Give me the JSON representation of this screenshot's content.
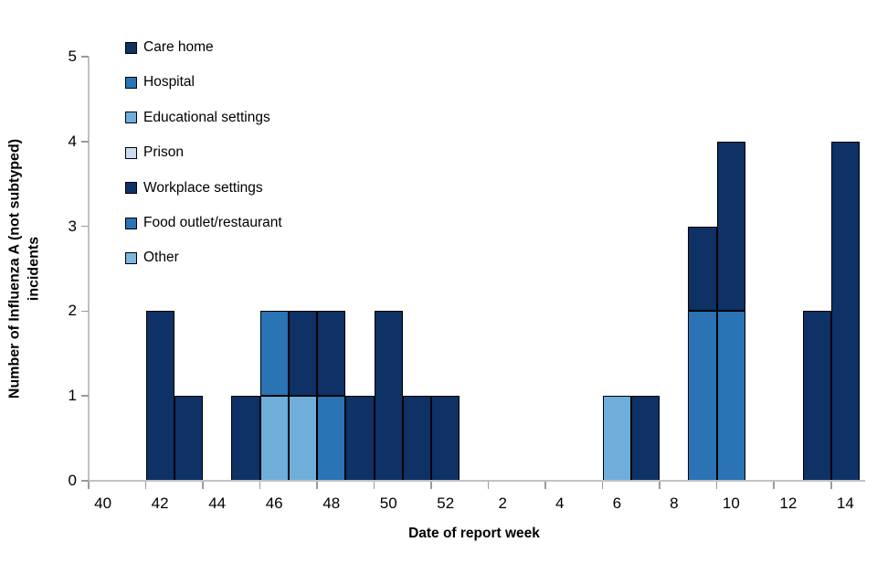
{
  "chart_data": {
    "type": "bar",
    "stacked": true,
    "title": "",
    "xlabel": "Date of report week",
    "ylabel": "Number of Influenza A (not subtyped) incidents",
    "ylabel_lines": [
      "Number of Influenza A (not subtyped)",
      "incidents"
    ],
    "ylim": [
      0,
      5
    ],
    "yticks": [
      "0",
      "1",
      "2",
      "3",
      "4",
      "5"
    ],
    "grid": false,
    "legend_position": "top-left-inside",
    "categories": [
      "40",
      "41",
      "42",
      "43",
      "44",
      "45",
      "46",
      "47",
      "48",
      "49",
      "50",
      "51",
      "52",
      "1",
      "2",
      "3",
      "4",
      "5",
      "6",
      "7",
      "8",
      "9",
      "10",
      "11",
      "12",
      "13",
      "14"
    ],
    "x_tick_labels": [
      "40",
      "42",
      "44",
      "46",
      "48",
      "50",
      "52",
      "2",
      "4",
      "6",
      "8",
      "10",
      "12",
      "14"
    ],
    "series": [
      {
        "name": "Care home",
        "color": "#0E3166",
        "hatch": "none",
        "values": [
          0,
          0,
          2,
          1,
          0,
          1,
          0,
          1,
          1,
          1,
          2,
          1,
          1,
          0,
          0,
          0,
          0,
          0,
          0,
          1,
          0,
          1,
          2,
          0,
          0,
          2,
          4
        ]
      },
      {
        "name": "Hospital",
        "color": "#2A73B5",
        "hatch": "none",
        "values": [
          0,
          0,
          0,
          0,
          0,
          0,
          1,
          0,
          1,
          0,
          0,
          0,
          0,
          0,
          0,
          0,
          0,
          0,
          0,
          0,
          0,
          2,
          2,
          0,
          0,
          0,
          0
        ]
      },
      {
        "name": "Educational settings",
        "color": "#6FAEDA",
        "hatch": "none",
        "values": [
          0,
          0,
          0,
          0,
          0,
          0,
          1,
          1,
          0,
          0,
          0,
          0,
          0,
          0,
          0,
          0,
          0,
          0,
          1,
          0,
          0,
          0,
          0,
          0,
          0,
          0,
          0
        ]
      },
      {
        "name": "Prison",
        "color": "#CBDCEF",
        "hatch": "none",
        "values": [
          0,
          0,
          0,
          0,
          0,
          0,
          0,
          0,
          0,
          0,
          0,
          0,
          0,
          0,
          0,
          0,
          0,
          0,
          0,
          0,
          0,
          0,
          0,
          0,
          0,
          0,
          0
        ]
      },
      {
        "name": "Workplace settings",
        "color": "#0E3166",
        "hatch": "backslash",
        "values": [
          0,
          0,
          0,
          0,
          0,
          0,
          0,
          0,
          0,
          0,
          0,
          0,
          0,
          0,
          0,
          0,
          0,
          0,
          0,
          0,
          0,
          0,
          0,
          0,
          0,
          0,
          0
        ]
      },
      {
        "name": "Food outlet/restaurant",
        "color": "#2A73B5",
        "hatch": "slash",
        "values": [
          0,
          0,
          0,
          0,
          0,
          0,
          0,
          0,
          0,
          0,
          0,
          0,
          0,
          0,
          0,
          0,
          0,
          0,
          0,
          0,
          0,
          0,
          0,
          0,
          0,
          0,
          0
        ]
      },
      {
        "name": "Other",
        "color": "#7EB6DD",
        "hatch": "backslash",
        "values": [
          0,
          0,
          0,
          0,
          0,
          0,
          0,
          0,
          0,
          0,
          0,
          0,
          0,
          0,
          0,
          0,
          0,
          0,
          0,
          0,
          0,
          0,
          0,
          0,
          0,
          0,
          0
        ]
      }
    ],
    "colors": {
      "axis_line": "#C2C2C2",
      "tick_mark": "#9A9A9A",
      "bar_border": "#000000",
      "text": "#000000"
    }
  }
}
